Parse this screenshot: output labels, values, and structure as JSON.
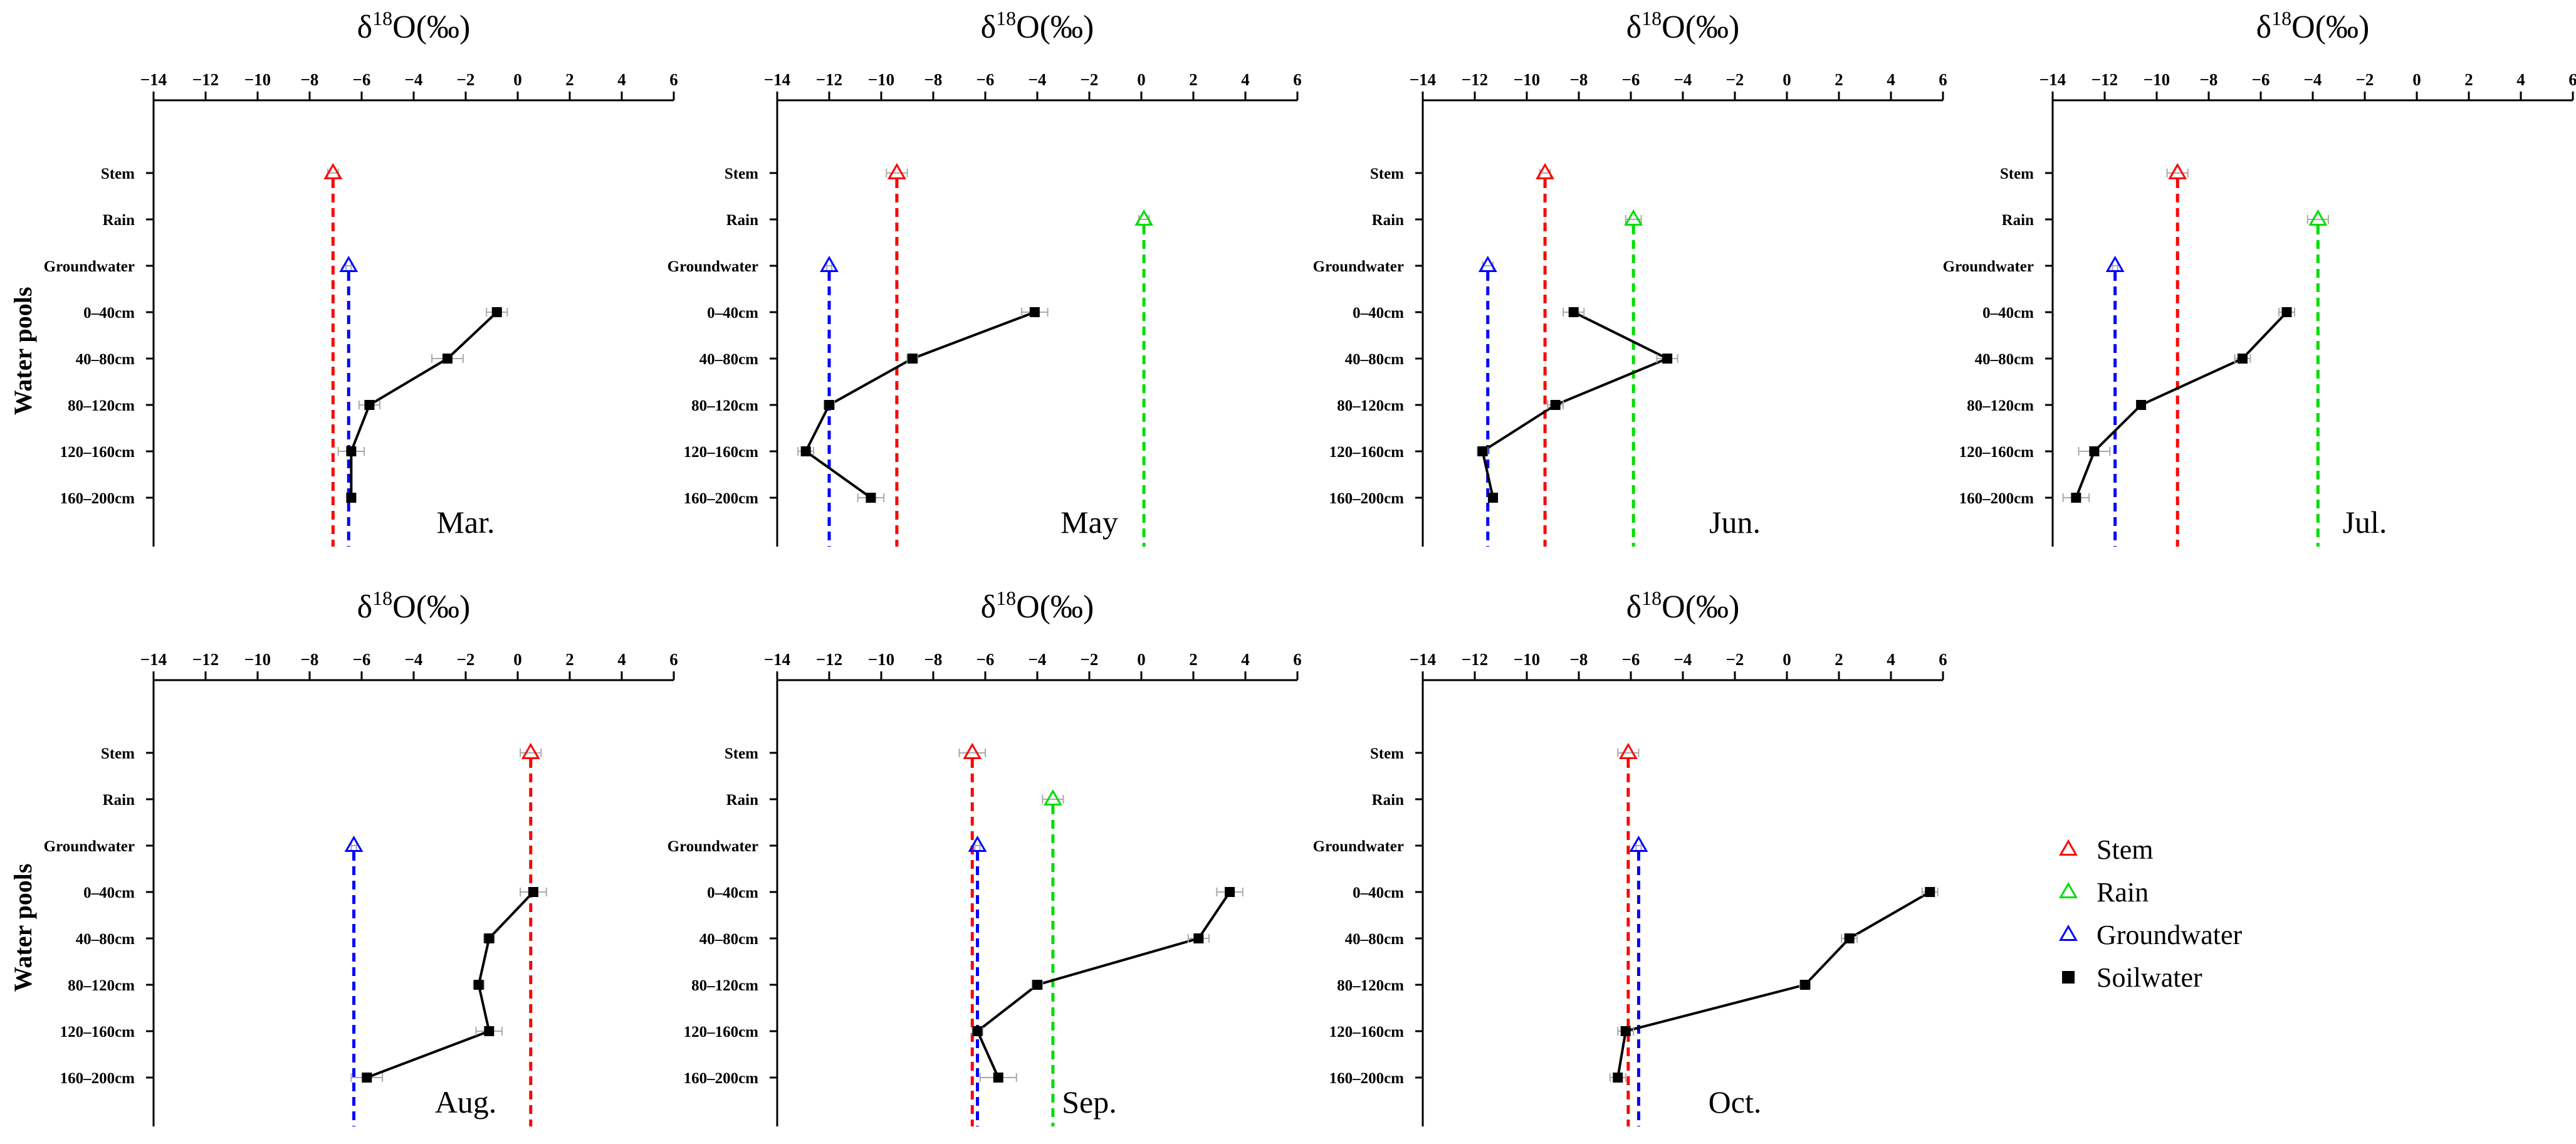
{
  "figure_ylabel": "Water pools",
  "title_base": "δ",
  "title_sup": "18",
  "title_rest": "O(‰)",
  "colors": {
    "stem": "#ff0000",
    "rain": "#00dd00",
    "groundwater": "#0000ff",
    "soil": "#000000",
    "errorbar": "#aaaaaa"
  },
  "legend": [
    {
      "key": "stem",
      "label": "Stem",
      "marker": "triangle",
      "color": "#ff0000"
    },
    {
      "key": "rain",
      "label": "Rain",
      "marker": "triangle",
      "color": "#00dd00"
    },
    {
      "key": "groundwater",
      "label": "Groundwater",
      "marker": "triangle",
      "color": "#0000ff"
    },
    {
      "key": "soil",
      "label": "Soilwater",
      "marker": "square",
      "color": "#000000"
    }
  ],
  "chart_data": [
    {
      "type": "line",
      "month": "Mar.",
      "title": "δ18O(‰)",
      "ylabel": "Water pools",
      "xlim": [
        -14,
        6
      ],
      "xticks": [
        -14,
        -12,
        -10,
        -8,
        -6,
        -4,
        -2,
        0,
        2,
        4,
        6
      ],
      "categories": [
        "Stem",
        "Rain",
        "Groundwater",
        "0–40cm",
        "40–80cm",
        "80–120cm",
        "120–160cm",
        "160–200cm"
      ],
      "stem": -7.1,
      "stem_err": 0.2,
      "rain": null,
      "rain_err": null,
      "groundwater": -6.5,
      "groundwater_err": 0.1,
      "soil": [
        -0.8,
        -2.7,
        -5.7,
        -6.4,
        -6.4
      ],
      "soil_err": [
        0.4,
        0.6,
        0.4,
        0.5,
        0.1
      ]
    },
    {
      "type": "line",
      "month": "May",
      "title": "δ18O(‰)",
      "ylabel": "",
      "xlim": [
        -14,
        6
      ],
      "xticks": [
        -14,
        -12,
        -10,
        -8,
        -6,
        -4,
        -2,
        0,
        2,
        4,
        6
      ],
      "categories": [
        "Stem",
        "Rain",
        "Groundwater",
        "0–40cm",
        "40–80cm",
        "80–120cm",
        "120–160cm",
        "160–200cm"
      ],
      "stem": -9.4,
      "stem_err": 0.4,
      "rain": 0.1,
      "rain_err": 0.2,
      "groundwater": -12.0,
      "groundwater_err": 0.1,
      "soil": [
        -4.1,
        -8.8,
        -12.0,
        -12.9,
        -10.4
      ],
      "soil_err": [
        0.5,
        0.2,
        0.2,
        0.3,
        0.5
      ]
    },
    {
      "type": "line",
      "month": "Jun.",
      "title": "δ18O(‰)",
      "ylabel": "",
      "xlim": [
        -14,
        6
      ],
      "xticks": [
        -14,
        -12,
        -10,
        -8,
        -6,
        -4,
        -2,
        0,
        2,
        4,
        6
      ],
      "categories": [
        "Stem",
        "Rain",
        "Groundwater",
        "0–40cm",
        "40–80cm",
        "80–120cm",
        "120–160cm",
        "160–200cm"
      ],
      "stem": -9.3,
      "stem_err": 0.2,
      "rain": -5.9,
      "rain_err": 0.3,
      "groundwater": -11.5,
      "groundwater_err": 0.2,
      "soil": [
        -8.2,
        -4.6,
        -8.9,
        -11.7,
        -11.3
      ],
      "soil_err": [
        0.4,
        0.4,
        0.3,
        0.2,
        0.1
      ]
    },
    {
      "type": "line",
      "month": "Jul.",
      "title": "δ18O(‰)",
      "ylabel": "",
      "xlim": [
        -14,
        6
      ],
      "xticks": [
        -14,
        -12,
        -10,
        -8,
        -6,
        -4,
        -2,
        0,
        2,
        4,
        6
      ],
      "categories": [
        "Stem",
        "Rain",
        "Groundwater",
        "0–40cm",
        "40–80cm",
        "80–120cm",
        "120–160cm",
        "160–200cm"
      ],
      "stem": -9.2,
      "stem_err": 0.4,
      "rain": -3.8,
      "rain_err": 0.4,
      "groundwater": -11.6,
      "groundwater_err": 0.1,
      "soil": [
        -5.0,
        -6.7,
        -10.6,
        -12.4,
        -13.1
      ],
      "soil_err": [
        0.3,
        0.3,
        0.1,
        0.6,
        0.5
      ]
    },
    {
      "type": "line",
      "month": "Aug.",
      "title": "δ18O(‰)",
      "ylabel": "Water pools",
      "xlim": [
        -14,
        6
      ],
      "xticks": [
        -14,
        -12,
        -10,
        -8,
        -6,
        -4,
        -2,
        0,
        2,
        4,
        6
      ],
      "categories": [
        "Stem",
        "Rain",
        "Groundwater",
        "0–40cm",
        "40–80cm",
        "80–120cm",
        "120–160cm",
        "160–200cm"
      ],
      "stem": 0.5,
      "stem_err": 0.4,
      "rain": null,
      "rain_err": null,
      "groundwater": -6.3,
      "groundwater_err": 0.1,
      "soil": [
        0.6,
        -1.1,
        -1.5,
        -1.1,
        -5.8
      ],
      "soil_err": [
        0.5,
        0.2,
        0.2,
        0.5,
        0.6
      ]
    },
    {
      "type": "line",
      "month": "Sep.",
      "title": "δ18O(‰)",
      "ylabel": "",
      "xlim": [
        -14,
        6
      ],
      "xticks": [
        -14,
        -12,
        -10,
        -8,
        -6,
        -4,
        -2,
        0,
        2,
        4,
        6
      ],
      "categories": [
        "Stem",
        "Rain",
        "Groundwater",
        "0–40cm",
        "40–80cm",
        "80–120cm",
        "120–160cm",
        "160–200cm"
      ],
      "stem": -6.5,
      "stem_err": 0.5,
      "rain": -3.4,
      "rain_err": 0.4,
      "groundwater": -6.3,
      "groundwater_err": 0.1,
      "soil": [
        3.4,
        2.2,
        -4.0,
        -6.3,
        -5.5
      ],
      "soil_err": [
        0.5,
        0.4,
        0.2,
        0.2,
        0.7
      ]
    },
    {
      "type": "line",
      "month": "Oct.",
      "title": "δ18O(‰)",
      "ylabel": "",
      "xlim": [
        -14,
        6
      ],
      "xticks": [
        -14,
        -12,
        -10,
        -8,
        -6,
        -4,
        -2,
        0,
        2,
        4,
        6
      ],
      "categories": [
        "Stem",
        "Rain",
        "Groundwater",
        "0–40cm",
        "40–80cm",
        "80–120cm",
        "120–160cm",
        "160–200cm"
      ],
      "stem": -6.1,
      "stem_err": 0.4,
      "rain": null,
      "rain_err": null,
      "groundwater": -5.7,
      "groundwater_err": 0.1,
      "soil": [
        5.5,
        2.4,
        0.7,
        -6.2,
        -6.5
      ],
      "soil_err": [
        0.3,
        0.3,
        0.2,
        0.3,
        0.3
      ]
    }
  ]
}
